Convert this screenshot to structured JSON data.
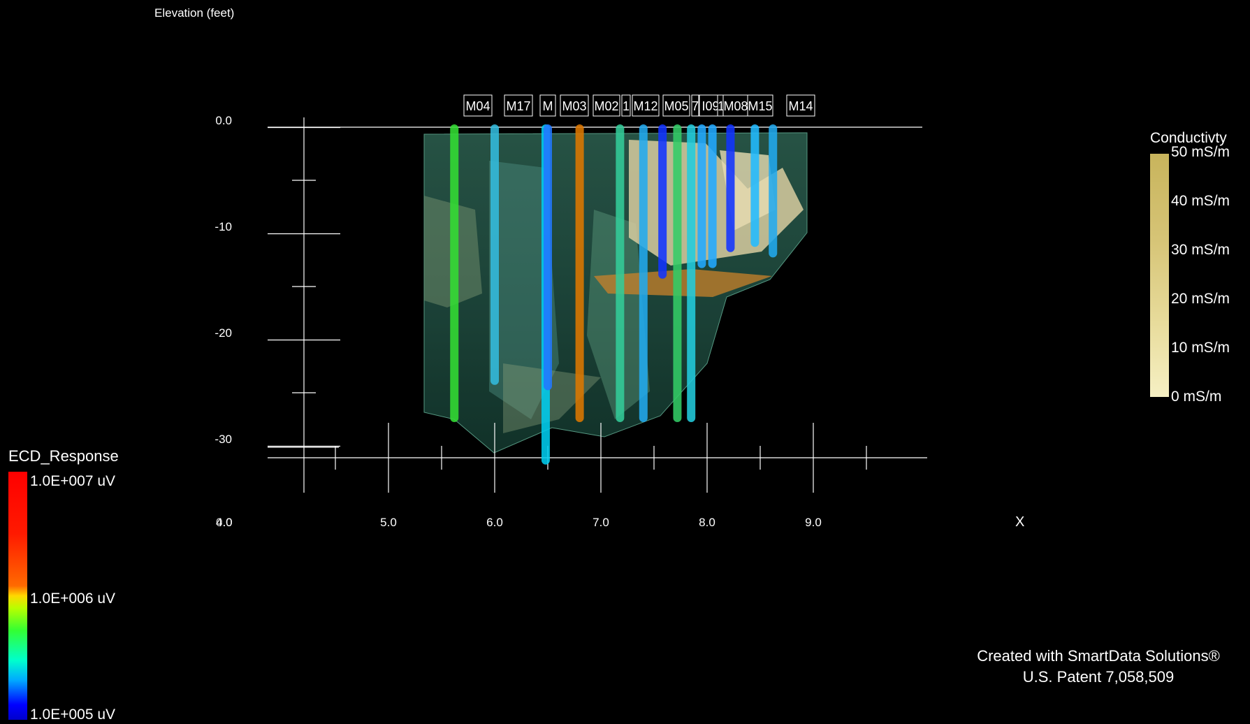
{
  "chart_data": {
    "type": "scatter",
    "ylabel": "Elevation (feet)",
    "xlabel": "X",
    "y_ticks": [
      "0.0",
      "-10",
      "-20",
      "-30"
    ],
    "x_ticks": [
      "5.0",
      "6.0",
      "7.0",
      "8.0",
      "9.0"
    ],
    "x_origin_labels": [
      "4.0",
      "0.0"
    ],
    "ylim": [
      -34,
      1
    ],
    "xlim": [
      3.4,
      9.8
    ],
    "wells": [
      {
        "name": "M04",
        "x": 5.62,
        "bottom": -27.5,
        "color": "#33dd33"
      },
      {
        "name": "M17",
        "x": 6.0,
        "bottom": -24,
        "color": "#33bbdd"
      },
      {
        "name": "M",
        "x": 6.48,
        "bottom": -31.5,
        "color": "#00ccee"
      },
      {
        "name": "M",
        "x": 6.5,
        "bottom": -24.5,
        "color": "#2277ff"
      },
      {
        "name": "M03",
        "x": 6.8,
        "bottom": -27.5,
        "color": "#dd7700"
      },
      {
        "name": "M02",
        "x": 7.18,
        "bottom": -27.5,
        "color": "#33cc99"
      },
      {
        "name": "1",
        "x": 7.4,
        "bottom": -27.5,
        "color": "#22aaee"
      },
      {
        "name": "M12",
        "x": 7.58,
        "bottom": -14,
        "color": "#1133ff"
      },
      {
        "name": "M05",
        "x": 7.72,
        "bottom": -27.5,
        "color": "#33cc66"
      },
      {
        "name": "7",
        "x": 7.85,
        "bottom": -27.5,
        "color": "#22ccdd"
      },
      {
        "name": "I09",
        "x": 7.95,
        "bottom": -13,
        "color": "#22aaff"
      },
      {
        "name": "1",
        "x": 8.05,
        "bottom": -13,
        "color": "#22aaff"
      },
      {
        "name": "M08",
        "x": 8.22,
        "bottom": -11.5,
        "color": "#1133ff"
      },
      {
        "name": "M15",
        "x": 8.45,
        "bottom": -11,
        "color": "#22bbff"
      },
      {
        "name": "M14",
        "x": 8.62,
        "bottom": -12,
        "color": "#22aaee"
      }
    ],
    "legend_ecd": {
      "title": "ECD_Response",
      "labels": [
        "1.0E+007 uV",
        "1.0E+006 uV",
        "1.0E+005 uV"
      ]
    },
    "legend_conductivity": {
      "title": "Conductivty",
      "labels": [
        "50 mS/m",
        "40 mS/m",
        "30 mS/m",
        "20 mS/m",
        "10 mS/m",
        "0 mS/m"
      ]
    }
  },
  "credit": {
    "line1": "Created with SmartData Solutions®",
    "line2": "U.S. Patent 7,058,509"
  }
}
